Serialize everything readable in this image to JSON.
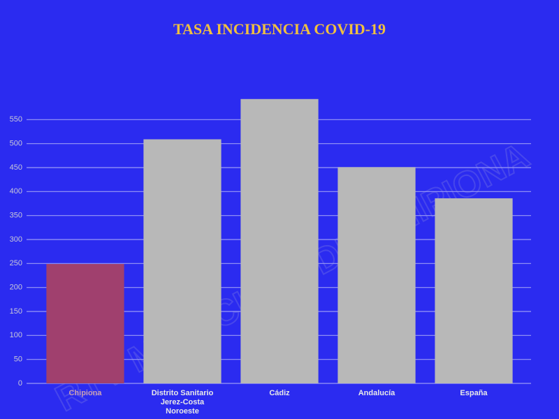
{
  "chart_data": {
    "type": "bar",
    "title": "TASA INCIDENCIA COVID-19",
    "categories": [
      "Chipiona",
      "Distrito Sanitario Jerez-Costa Noroeste",
      "Cádiz",
      "Andalucía",
      "España"
    ],
    "values": [
      249,
      509,
      593,
      451,
      386
    ],
    "colors": [
      "#a0406e",
      "#b8b8b8",
      "#b8b8b8",
      "#b8b8b8",
      "#b8b8b8"
    ],
    "label_colors": [
      "#c8a0b4",
      "#e8e8e8",
      "#e8e8e8",
      "#e8e8e8",
      "#e8e8e8"
    ],
    "ylim": [
      0,
      600
    ],
    "yticks": [
      0,
      50,
      100,
      150,
      200,
      250,
      300,
      350,
      400,
      450,
      500,
      550
    ],
    "grid": true,
    "watermark": "RTV MUNICIPAL DE CHIPIONA"
  }
}
